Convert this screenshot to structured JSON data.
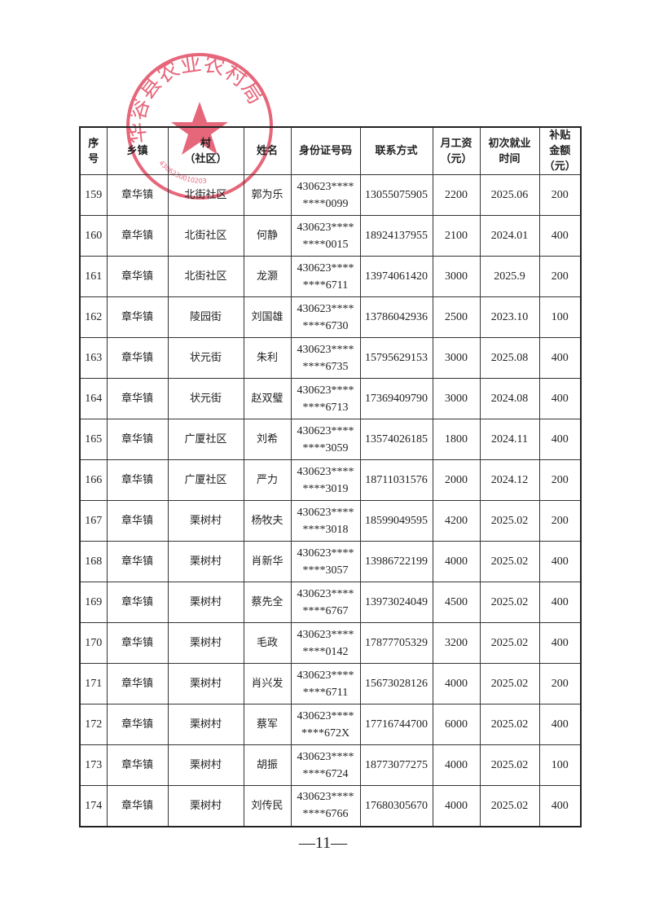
{
  "headers": [
    "序\n号",
    "乡镇",
    "村\n（社区）",
    "姓名",
    "身份证号码",
    "联系方式",
    "月工资\n（元）",
    "初次就业\n时间",
    "补贴\n金额\n（元）"
  ],
  "rows": [
    [
      "159",
      "章华镇",
      "北街社区",
      "郭为乐",
      "430623****\n****0099",
      "13055075905",
      "2200",
      "2025.06",
      "200"
    ],
    [
      "160",
      "章华镇",
      "北街社区",
      "何静",
      "430623****\n****0015",
      "18924137955",
      "2100",
      "2024.01",
      "400"
    ],
    [
      "161",
      "章华镇",
      "北街社区",
      "龙灏",
      "430623****\n****6711",
      "13974061420",
      "3000",
      "2025.9",
      "200"
    ],
    [
      "162",
      "章华镇",
      "陵园街",
      "刘国雄",
      "430623****\n****6730",
      "13786042936",
      "2500",
      "2023.10",
      "100"
    ],
    [
      "163",
      "章华镇",
      "状元街",
      "朱利",
      "430623****\n****6735",
      "15795629153",
      "3000",
      "2025.08",
      "400"
    ],
    [
      "164",
      "章华镇",
      "状元街",
      "赵双璧",
      "430623****\n****6713",
      "17369409790",
      "3000",
      "2024.08",
      "400"
    ],
    [
      "165",
      "章华镇",
      "广厦社区",
      "刘希",
      "430623****\n****3059",
      "13574026185",
      "1800",
      "2024.11",
      "400"
    ],
    [
      "166",
      "章华镇",
      "广厦社区",
      "严力",
      "430623****\n****3019",
      "18711031576",
      "2000",
      "2024.12",
      "200"
    ],
    [
      "167",
      "章华镇",
      "栗树村",
      "杨牧夫",
      "430623****\n****3018",
      "18599049595",
      "4200",
      "2025.02",
      "200"
    ],
    [
      "168",
      "章华镇",
      "栗树村",
      "肖新华",
      "430623****\n****3057",
      "13986722199",
      "4000",
      "2025.02",
      "400"
    ],
    [
      "169",
      "章华镇",
      "栗树村",
      "蔡先全",
      "430623****\n****6767",
      "13973024049",
      "4500",
      "2025.02",
      "400"
    ],
    [
      "170",
      "章华镇",
      "栗树村",
      "毛政",
      "430623****\n****0142",
      "17877705329",
      "3200",
      "2025.02",
      "400"
    ],
    [
      "171",
      "章华镇",
      "栗树村",
      "肖兴发",
      "430623****\n****6711",
      "15673028126",
      "4000",
      "2025.02",
      "200"
    ],
    [
      "172",
      "章华镇",
      "栗树村",
      "蔡军",
      "430623****\n****672X",
      "17716744700",
      "6000",
      "2025.02",
      "400"
    ],
    [
      "173",
      "章华镇",
      "栗树村",
      "胡振",
      "430623****\n****6724",
      "18773077275",
      "4000",
      "2025.02",
      "100"
    ],
    [
      "174",
      "章华镇",
      "栗树村",
      "刘传民",
      "430623****\n****6766",
      "17680305670",
      "4000",
      "2025.02",
      "400"
    ]
  ],
  "page_number": "—11—",
  "stamp": {
    "text": "华容县农业农村局",
    "code": "4306230010203",
    "color": "#e0405a"
  }
}
